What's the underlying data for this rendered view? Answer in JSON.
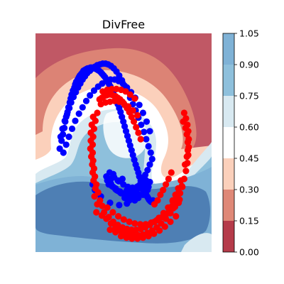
{
  "chart_data": {
    "type": "scatter",
    "title": "DivFree",
    "xlabel": "",
    "ylabel": "",
    "xlim": [
      -1.55,
      2.3
    ],
    "ylim": [
      -1.2,
      1.55
    ],
    "grid": false,
    "axes_visible": false,
    "background": "filled-contour",
    "colormap": "RdBu",
    "colormap_alpha": 0.8,
    "colorbar": {
      "levels": [
        0.0,
        0.15,
        0.3,
        0.45,
        0.6,
        0.75,
        0.9,
        1.05
      ],
      "tick_labels": [
        "0.00",
        "0.15",
        "0.30",
        "0.45",
        "0.60",
        "0.75",
        "0.90",
        "1.05"
      ],
      "colors": [
        "#b53b4a",
        "#df8877",
        "#fbd0bb",
        "#ffffff",
        "#d8e9f1",
        "#8ec0dc",
        "#7fb2d6",
        "#4e7fb4"
      ]
    },
    "series": [
      {
        "class": 0,
        "marker_color": "#0000ff",
        "note_shape": "upper moon",
        "x": [
          -1.02,
          -0.98,
          -0.95,
          -0.92,
          -0.9,
          -0.88,
          -0.85,
          -0.83,
          -0.8,
          -0.78,
          -0.76,
          -0.73,
          -0.7,
          -0.68,
          -0.66,
          -0.63,
          -0.6,
          -0.58,
          -0.55,
          -0.52,
          -0.5,
          -0.47,
          -0.44,
          -0.41,
          -0.38,
          -0.35,
          -0.32,
          -0.29,
          -0.26,
          -0.22,
          -0.19,
          -0.16,
          -0.12,
          -0.09,
          -0.06,
          -0.03,
          0.0,
          0.03,
          0.06,
          0.09,
          0.12,
          0.15,
          0.19,
          0.22,
          0.25,
          0.28,
          0.31,
          0.34,
          0.37,
          0.4,
          0.43,
          0.46,
          0.49,
          0.52,
          0.55,
          0.58,
          0.61,
          0.64,
          0.67,
          0.7,
          0.72,
          0.75,
          0.78,
          0.8,
          0.83,
          0.85,
          0.87,
          0.89,
          0.91,
          0.93,
          0.95,
          0.96,
          0.98,
          1.0,
          1.01,
          1.02,
          -1.0,
          -0.96,
          -0.91,
          -0.86,
          -0.81,
          -0.77,
          -0.72,
          -0.67,
          -0.62,
          -0.57,
          -0.52,
          -0.47,
          -0.42,
          -0.36,
          -0.31,
          -0.25,
          -0.2,
          -0.14,
          -0.08,
          -0.02,
          0.04,
          0.1,
          0.16,
          0.22,
          0.28,
          0.34,
          0.4,
          0.46,
          0.52,
          0.58,
          0.64,
          0.7,
          0.76,
          0.82,
          0.87,
          0.92,
          0.97,
          -0.94,
          -0.88,
          -0.82,
          -0.75,
          -0.68,
          -0.6,
          -0.52,
          -0.44,
          -0.36,
          -0.27,
          -0.18,
          -0.09,
          0.0,
          0.09,
          0.18,
          0.27,
          0.36,
          0.45,
          0.54,
          0.63,
          0.72,
          0.8,
          0.88,
          0.95,
          0.0,
          0.05,
          0.1,
          0.15,
          0.2,
          0.25,
          0.3,
          0.35,
          0.4,
          0.45,
          0.5,
          0.55,
          0.6,
          0.65,
          0.7,
          0.75,
          0.8,
          0.85,
          0.9,
          0.95,
          1.0,
          0.02,
          0.12,
          0.22,
          0.32,
          0.42,
          0.52,
          0.62,
          0.72,
          0.82,
          0.92,
          0.07,
          0.17,
          0.27,
          0.37,
          0.47,
          0.57,
          0.67,
          0.77,
          0.87,
          0.05,
          0.1,
          0.2,
          0.3,
          0.4,
          0.5,
          0.6,
          0.7,
          0.8,
          0.9,
          0.95,
          0.15,
          0.25,
          0.35,
          0.45,
          0.55,
          0.65,
          0.75,
          0.85,
          -0.3,
          -0.25,
          -0.12,
          0.08,
          0.28,
          0.45,
          0.62
        ],
        "y": [
          0.1,
          0.2,
          0.28,
          0.36,
          0.44,
          0.5,
          0.56,
          0.62,
          0.68,
          0.73,
          0.78,
          0.83,
          0.87,
          0.91,
          0.94,
          0.97,
          1.0,
          1.02,
          1.04,
          1.06,
          1.08,
          1.09,
          1.1,
          1.11,
          1.11,
          1.12,
          1.12,
          1.11,
          1.11,
          1.1,
          1.09,
          1.08,
          1.06,
          1.04,
          1.02,
          1.0,
          0.97,
          0.94,
          0.91,
          0.88,
          0.84,
          0.8,
          0.76,
          0.71,
          0.66,
          0.61,
          0.56,
          0.5,
          0.44,
          0.38,
          0.32,
          0.26,
          0.2,
          0.14,
          0.08,
          0.02,
          -0.04,
          -0.1,
          -0.15,
          -0.2,
          -0.25,
          -0.3,
          -0.34,
          -0.38,
          -0.42,
          -0.45,
          -0.48,
          -0.5,
          -0.52,
          -0.54,
          -0.55,
          -0.56,
          -0.57,
          -0.57,
          -0.56,
          -0.55,
          0.25,
          0.35,
          0.45,
          0.53,
          0.61,
          0.68,
          0.75,
          0.81,
          0.87,
          0.92,
          0.97,
          1.01,
          1.05,
          1.08,
          1.11,
          1.13,
          1.15,
          1.16,
          1.17,
          1.17,
          1.16,
          1.14,
          1.11,
          1.07,
          1.02,
          0.96,
          0.89,
          0.82,
          0.74,
          0.66,
          0.58,
          0.49,
          0.4,
          0.31,
          0.22,
          0.13,
          0.05,
          0.05,
          0.15,
          0.25,
          0.35,
          0.45,
          0.54,
          0.62,
          0.7,
          0.77,
          0.83,
          0.88,
          0.92,
          0.95,
          0.97,
          0.97,
          0.95,
          0.92,
          0.87,
          0.81,
          0.74,
          0.65,
          0.55,
          0.44,
          0.32,
          -0.25,
          -0.3,
          -0.34,
          -0.38,
          -0.41,
          -0.43,
          -0.45,
          -0.46,
          -0.47,
          -0.47,
          -0.46,
          -0.45,
          -0.43,
          -0.4,
          -0.37,
          -0.33,
          -0.28,
          -0.23,
          -0.17,
          -0.1,
          -0.03,
          -0.3,
          -0.37,
          -0.42,
          -0.46,
          -0.49,
          -0.5,
          -0.5,
          -0.48,
          -0.44,
          -0.38,
          -0.2,
          -0.26,
          -0.31,
          -0.35,
          -0.38,
          -0.39,
          -0.38,
          -0.35,
          -0.3,
          -0.35,
          -0.28,
          -0.4,
          -0.44,
          -0.52,
          -0.55,
          -0.54,
          -0.52,
          -0.48,
          -0.42,
          -0.32,
          -0.22,
          -0.3,
          -0.28,
          -0.42,
          -0.46,
          -0.44,
          -0.4,
          -0.36,
          -0.35,
          -0.42,
          -0.5,
          -0.58,
          -0.61,
          -0.59,
          -0.55
        ]
      },
      {
        "class": 1,
        "marker_color": "#ff0000",
        "note_shape": "lower moon",
        "x": [
          -0.15,
          -0.1,
          -0.05,
          0.0,
          0.05,
          0.1,
          0.15,
          0.2,
          0.25,
          0.3,
          0.35,
          0.4,
          0.45,
          0.5,
          0.55,
          0.6,
          0.65,
          0.7,
          0.75,
          -0.12,
          -0.02,
          0.08,
          0.18,
          0.28,
          0.38,
          0.48,
          0.58,
          0.68,
          -0.08,
          0.02,
          0.12,
          0.22,
          0.32,
          0.42,
          0.52,
          0.62,
          -0.2,
          -0.24,
          -0.27,
          -0.29,
          -0.3,
          -0.3,
          -0.29,
          -0.27,
          -0.25,
          -0.22,
          -0.18,
          -0.14,
          -0.09,
          -0.32,
          -0.34,
          -0.33,
          -0.31,
          -0.28,
          -0.24,
          -0.2,
          -0.26,
          -0.3,
          -0.35,
          -0.34,
          -0.29,
          -0.22,
          -0.05,
          0.05,
          0.15,
          0.25,
          0.35,
          0.45,
          0.55,
          0.65,
          0.75,
          0.85,
          0.95,
          1.05,
          1.15,
          1.25,
          1.35,
          1.45,
          1.55,
          1.65,
          0.0,
          0.1,
          0.2,
          0.3,
          0.4,
          0.5,
          0.6,
          0.7,
          0.8,
          0.9,
          1.0,
          1.1,
          1.2,
          1.3,
          1.4,
          1.5,
          1.6,
          0.02,
          0.14,
          0.26,
          0.38,
          0.5,
          0.62,
          0.74,
          0.86,
          0.98,
          1.1,
          1.22,
          1.34,
          1.46,
          1.58,
          -0.1,
          0.08,
          0.2,
          0.32,
          0.44,
          0.56,
          0.68,
          0.8,
          0.92,
          1.04,
          1.16,
          1.28,
          1.4,
          1.52,
          1.7,
          1.74,
          1.77,
          1.79,
          1.8,
          1.8,
          1.79,
          1.77,
          1.74,
          1.7,
          1.66,
          1.61,
          1.56,
          1.5,
          1.44,
          1.38,
          1.72,
          1.76,
          1.78,
          1.78,
          1.76,
          1.73,
          1.68,
          1.63,
          1.57,
          1.51,
          1.45,
          1.05,
          1.12,
          1.18,
          1.24,
          1.3,
          1.36,
          1.42
        ],
        "y": [
          0.72,
          0.74,
          0.76,
          0.77,
          0.78,
          0.78,
          0.77,
          0.76,
          0.74,
          0.72,
          0.69,
          0.65,
          0.61,
          0.56,
          0.5,
          0.44,
          0.37,
          0.3,
          0.22,
          0.66,
          0.68,
          0.69,
          0.7,
          0.69,
          0.67,
          0.63,
          0.58,
          0.52,
          0.82,
          0.84,
          0.85,
          0.85,
          0.84,
          0.82,
          0.78,
          0.73,
          0.55,
          0.45,
          0.35,
          0.25,
          0.15,
          0.05,
          -0.05,
          -0.15,
          -0.25,
          -0.35,
          -0.45,
          -0.55,
          -0.62,
          0.4,
          0.2,
          0.0,
          -0.1,
          -0.3,
          -0.4,
          -0.6,
          -0.5,
          -0.2,
          0.1,
          0.3,
          0.5,
          -0.7,
          -0.7,
          -0.76,
          -0.82,
          -0.86,
          -0.89,
          -0.91,
          -0.92,
          -0.92,
          -0.91,
          -0.89,
          -0.86,
          -0.82,
          -0.77,
          -0.71,
          -0.64,
          -0.56,
          -0.47,
          -0.37,
          -0.78,
          -0.84,
          -0.89,
          -0.93,
          -0.96,
          -0.98,
          -0.99,
          -0.99,
          -0.98,
          -0.96,
          -0.93,
          -0.89,
          -0.84,
          -0.78,
          -0.71,
          -0.63,
          -0.54,
          -0.64,
          -0.7,
          -0.75,
          -0.79,
          -0.82,
          -0.84,
          -0.85,
          -0.85,
          -0.83,
          -0.8,
          -0.76,
          -0.71,
          -0.65,
          -0.58,
          -0.74,
          -0.92,
          -0.95,
          -1.0,
          -1.02,
          -1.03,
          -1.03,
          -1.02,
          -1.0,
          -0.97,
          -0.93,
          -0.88,
          -0.82,
          -0.75,
          -0.28,
          -0.18,
          -0.08,
          0.02,
          0.12,
          0.22,
          0.32,
          0.4,
          0.48,
          0.55,
          -0.38,
          -0.46,
          -0.52,
          -0.58,
          -0.62,
          -0.66,
          -0.1,
          0.0,
          0.08,
          0.18,
          0.28,
          0.36,
          0.44,
          -0.3,
          -0.4,
          -0.48,
          -0.55,
          -0.6,
          -0.55,
          -0.48,
          -0.42,
          -0.35,
          -0.28,
          -0.2
        ]
      }
    ]
  }
}
